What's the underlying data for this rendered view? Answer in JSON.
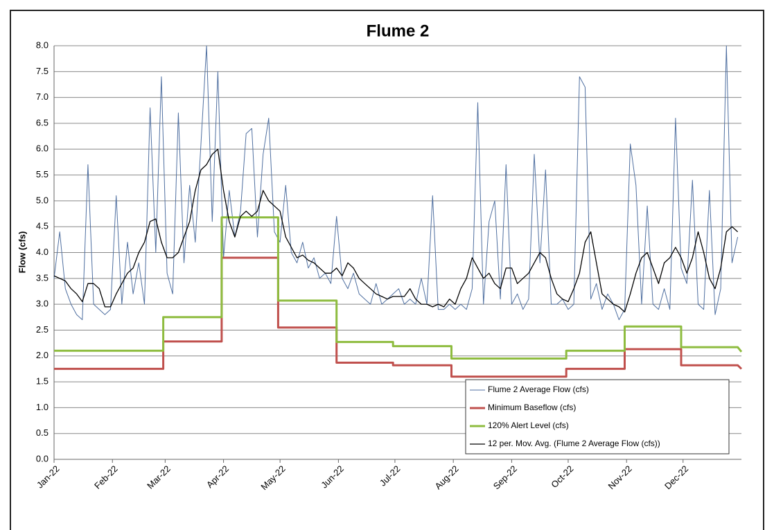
{
  "chart_data": {
    "type": "line",
    "title": "Flume 2",
    "y_label": "Flow (cfs)",
    "xlim": [
      0,
      365
    ],
    "ylim": [
      0,
      8
    ],
    "grid": true,
    "legend": "lower right",
    "xticks": [
      {
        "value": 0,
        "label": "Jan-22"
      },
      {
        "value": 31,
        "label": "Feb-22"
      },
      {
        "value": 59,
        "label": "Mar-22"
      },
      {
        "value": 90,
        "label": "Apr-22"
      },
      {
        "value": 120,
        "label": "May-22"
      },
      {
        "value": 151,
        "label": "Jun-22"
      },
      {
        "value": 181,
        "label": "Jul-22"
      },
      {
        "value": 212,
        "label": "Aug-22"
      },
      {
        "value": 243,
        "label": "Sep-22"
      },
      {
        "value": 273,
        "label": "Oct-22"
      },
      {
        "value": 304,
        "label": "Nov-22"
      },
      {
        "value": 334,
        "label": "Dec-22"
      }
    ],
    "yticks": [
      {
        "value": 0,
        "label": "0.0"
      },
      0.5,
      {
        "value": 1,
        "label": "1.0"
      },
      1.5,
      {
        "value": 2,
        "label": "2.0"
      },
      2.5,
      {
        "value": 3,
        "label": "3.0"
      },
      3.5,
      {
        "value": 4,
        "label": "4.0"
      },
      4.5,
      {
        "value": 5,
        "label": "5.0"
      },
      5.5,
      {
        "value": 6,
        "label": "6.0"
      },
      6.5,
      {
        "value": 7,
        "label": "7.0"
      },
      7.5,
      {
        "value": 8,
        "label": "8.0"
      }
    ],
    "x": [
      0,
      3,
      6,
      9,
      12,
      15,
      18,
      21,
      24,
      27,
      30,
      33,
      36,
      39,
      42,
      45,
      48,
      51,
      54,
      57,
      60,
      63,
      66,
      69,
      72,
      75,
      78,
      81,
      84,
      87,
      90,
      93,
      96,
      99,
      102,
      105,
      108,
      111,
      114,
      117,
      120,
      123,
      126,
      129,
      132,
      135,
      138,
      141,
      144,
      147,
      150,
      153,
      156,
      159,
      162,
      165,
      168,
      171,
      174,
      177,
      180,
      183,
      186,
      189,
      192,
      195,
      198,
      201,
      204,
      207,
      210,
      213,
      216,
      219,
      222,
      225,
      228,
      231,
      234,
      237,
      240,
      243,
      246,
      249,
      252,
      255,
      258,
      261,
      264,
      267,
      270,
      273,
      276,
      279,
      282,
      285,
      288,
      291,
      294,
      297,
      300,
      303,
      306,
      309,
      312,
      315,
      318,
      321,
      324,
      327,
      330,
      333,
      336,
      339,
      342,
      345,
      348,
      351,
      354,
      357,
      360,
      363
    ],
    "series": [
      {
        "name": "Flume 2 Average Flow (cfs)",
        "color": "#4f6fa0",
        "width": 1,
        "values": [
          3.5,
          4.4,
          3.3,
          3.0,
          2.8,
          2.7,
          5.7,
          3.0,
          2.9,
          2.8,
          2.9,
          5.1,
          3.0,
          4.2,
          3.2,
          3.8,
          3.0,
          6.8,
          4.0,
          7.4,
          3.6,
          3.2,
          6.7,
          3.8,
          5.3,
          4.2,
          6.1,
          8.0,
          4.6,
          7.5,
          3.9,
          5.2,
          4.3,
          4.8,
          6.3,
          6.4,
          4.3,
          5.9,
          6.6,
          4.4,
          4.2,
          5.3,
          4.0,
          3.8,
          4.2,
          3.7,
          3.9,
          3.5,
          3.6,
          3.4,
          4.7,
          3.5,
          3.3,
          3.6,
          3.2,
          3.1,
          3.0,
          3.4,
          3.0,
          3.1,
          3.2,
          3.3,
          3.0,
          3.1,
          3.0,
          3.5,
          3.0,
          5.1,
          2.9,
          2.9,
          3.0,
          2.9,
          3.0,
          2.9,
          3.3,
          6.9,
          3.0,
          4.6,
          5.0,
          3.1,
          5.7,
          3.0,
          3.2,
          2.9,
          3.1,
          5.9,
          3.8,
          5.6,
          3.0,
          3.0,
          3.1,
          2.9,
          3.0,
          7.4,
          7.2,
          3.1,
          3.4,
          2.9,
          3.2,
          3.0,
          2.7,
          2.9,
          6.1,
          5.3,
          3.0,
          4.9,
          3.0,
          2.9,
          3.3,
          2.9,
          6.6,
          3.7,
          3.4,
          5.4,
          3.0,
          2.9,
          5.2,
          2.8,
          3.3,
          8.0,
          3.8,
          4.3
        ]
      },
      {
        "name": "Minimum Baseflow (cfs)",
        "color": "#c0504d",
        "width": 3,
        "x": [
          0,
          58,
          58,
          89,
          89,
          119,
          119,
          150,
          150,
          180,
          180,
          211,
          211,
          272,
          272,
          303,
          303,
          333,
          333,
          363,
          365
        ],
        "values": [
          1.75,
          1.75,
          2.28,
          2.28,
          3.9,
          3.9,
          2.55,
          2.55,
          1.87,
          1.87,
          1.82,
          1.82,
          1.6,
          1.6,
          1.75,
          1.75,
          2.13,
          2.13,
          1.82,
          1.82,
          1.75
        ]
      },
      {
        "name": "120% Alert Level (cfs)",
        "color": "#8ebc3f",
        "width": 3,
        "x": [
          0,
          58,
          58,
          89,
          89,
          119,
          119,
          150,
          150,
          180,
          180,
          211,
          211,
          272,
          272,
          303,
          303,
          333,
          333,
          363,
          365
        ],
        "values": [
          2.1,
          2.1,
          2.75,
          2.75,
          4.68,
          4.68,
          3.07,
          3.07,
          2.27,
          2.27,
          2.19,
          2.19,
          1.95,
          1.95,
          2.1,
          2.1,
          2.57,
          2.57,
          2.17,
          2.17,
          2.08
        ]
      },
      {
        "name": "12 per. Mov. Avg. (Flume 2 Average Flow (cfs))",
        "color": "#000000",
        "width": 1.3,
        "values": [
          3.55,
          3.5,
          3.45,
          3.3,
          3.2,
          3.05,
          3.4,
          3.4,
          3.3,
          2.95,
          2.95,
          3.2,
          3.4,
          3.6,
          3.7,
          4.0,
          4.2,
          4.6,
          4.65,
          4.2,
          3.9,
          3.9,
          4.0,
          4.3,
          4.6,
          5.2,
          5.6,
          5.7,
          5.9,
          6.0,
          5.2,
          4.6,
          4.3,
          4.7,
          4.8,
          4.7,
          4.8,
          5.2,
          5.0,
          4.9,
          4.8,
          4.3,
          4.1,
          3.9,
          3.95,
          3.85,
          3.8,
          3.7,
          3.6,
          3.6,
          3.7,
          3.55,
          3.8,
          3.7,
          3.5,
          3.4,
          3.3,
          3.2,
          3.15,
          3.1,
          3.15,
          3.15,
          3.15,
          3.3,
          3.1,
          3.0,
          3.0,
          2.95,
          3.0,
          2.95,
          3.1,
          3.0,
          3.3,
          3.5,
          3.9,
          3.7,
          3.5,
          3.6,
          3.4,
          3.3,
          3.7,
          3.7,
          3.4,
          3.5,
          3.6,
          3.8,
          4.0,
          3.9,
          3.5,
          3.2,
          3.1,
          3.05,
          3.3,
          3.6,
          4.2,
          4.4,
          3.8,
          3.2,
          3.1,
          3.0,
          2.95,
          2.85,
          3.2,
          3.6,
          3.9,
          4.0,
          3.7,
          3.4,
          3.8,
          3.9,
          4.1,
          3.9,
          3.6,
          3.9,
          4.4,
          4.0,
          3.5,
          3.3,
          3.7,
          4.4,
          4.5,
          4.4
        ]
      }
    ]
  }
}
